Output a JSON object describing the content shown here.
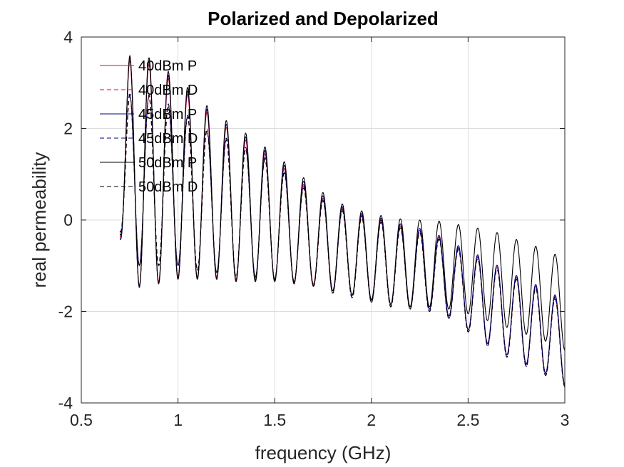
{
  "chart_data": {
    "type": "line",
    "title": "Polarized and Depolarized",
    "xlabel": "frequency (GHz)",
    "ylabel": "real permeability",
    "xlim": [
      0.5,
      3
    ],
    "ylim": [
      -4,
      4
    ],
    "xticks": [
      0.5,
      1,
      1.5,
      2,
      2.5,
      3
    ],
    "xtick_labels": [
      "0.5",
      "1",
      "1.5",
      "2",
      "2.5",
      "3"
    ],
    "yticks": [
      -4,
      -2,
      0,
      2,
      4
    ],
    "ytick_labels": [
      "-4",
      "-2",
      "0",
      "2",
      "4"
    ],
    "grid": true,
    "legend": "top-left",
    "oscillation_period_ghz": 0.1,
    "series": [
      {
        "name": "40dBm P",
        "color": "#ff0000",
        "dash": "solid",
        "x": [
          0.7,
          0.75,
          0.8,
          0.85,
          0.9,
          0.95,
          1.0,
          1.05,
          1.1,
          1.15,
          1.2,
          1.3,
          1.4,
          1.5,
          1.6,
          1.7,
          1.8,
          1.9,
          2.0,
          2.1,
          2.2,
          2.3,
          2.4,
          2.5,
          2.6,
          2.7,
          2.8,
          2.9,
          3.0
        ],
        "center": [
          1.05,
          1.1,
          1.05,
          1.0,
          0.95,
          0.9,
          0.85,
          0.75,
          0.65,
          0.55,
          0.45,
          0.3,
          0.15,
          0.0,
          -0.2,
          -0.4,
          -0.6,
          -0.75,
          -0.85,
          -0.95,
          -1.05,
          -1.1,
          -1.3,
          -1.55,
          -1.8,
          -2.05,
          -2.25,
          -2.45,
          -2.7
        ],
        "amplitude": [
          1.4,
          2.4,
          2.5,
          2.4,
          2.3,
          2.2,
          2.1,
          2.0,
          1.9,
          1.8,
          1.7,
          1.6,
          1.45,
          1.3,
          1.15,
          1.0,
          0.95,
          0.9,
          0.9,
          0.9,
          0.85,
          0.85,
          0.8,
          0.85,
          0.9,
          0.9,
          0.9,
          0.9,
          0.9
        ]
      },
      {
        "name": "40dBm D",
        "color": "#ff0000",
        "dash": "dashed",
        "x": [
          0.7,
          0.75,
          0.8,
          0.85,
          0.9,
          0.95,
          1.0,
          1.05,
          1.1,
          1.15,
          1.2,
          1.3,
          1.4,
          1.5,
          1.6,
          1.7,
          1.8,
          1.9,
          2.0,
          2.1,
          2.2,
          2.3,
          2.4,
          2.5,
          2.6,
          2.7,
          2.8,
          2.9,
          3.0
        ],
        "center": [
          0.85,
          0.95,
          0.9,
          0.85,
          0.8,
          0.75,
          0.7,
          0.6,
          0.5,
          0.4,
          0.35,
          0.2,
          0.1,
          -0.05,
          -0.25,
          -0.45,
          -0.65,
          -0.8,
          -0.9,
          -1.0,
          -1.1,
          -1.15,
          -1.35,
          -1.6,
          -1.85,
          -2.1,
          -2.3,
          -2.5,
          -2.75
        ],
        "amplitude": [
          1.1,
          1.8,
          1.9,
          1.85,
          1.8,
          1.75,
          1.7,
          1.65,
          1.6,
          1.55,
          1.5,
          1.45,
          1.35,
          1.25,
          1.1,
          1.0,
          0.95,
          0.9,
          0.9,
          0.9,
          0.85,
          0.85,
          0.8,
          0.85,
          0.9,
          0.9,
          0.9,
          0.9,
          0.9
        ]
      },
      {
        "name": "45dBm P",
        "color": "#000080",
        "dash": "solid",
        "x": [
          0.7,
          0.75,
          0.8,
          0.85,
          0.9,
          0.95,
          1.0,
          1.05,
          1.1,
          1.15,
          1.2,
          1.3,
          1.4,
          1.5,
          1.6,
          1.7,
          1.8,
          1.9,
          2.0,
          2.1,
          2.2,
          2.3,
          2.4,
          2.5,
          2.6,
          2.7,
          2.8,
          2.9,
          3.0
        ],
        "center": [
          1.05,
          1.12,
          1.07,
          1.02,
          0.97,
          0.92,
          0.87,
          0.77,
          0.67,
          0.57,
          0.47,
          0.32,
          0.17,
          0.02,
          -0.18,
          -0.38,
          -0.58,
          -0.73,
          -0.83,
          -0.93,
          -1.03,
          -1.08,
          -1.28,
          -1.53,
          -1.78,
          -2.03,
          -2.23,
          -2.43,
          -2.68
        ],
        "amplitude": [
          1.45,
          2.45,
          2.55,
          2.45,
          2.35,
          2.25,
          2.15,
          2.05,
          1.95,
          1.85,
          1.75,
          1.65,
          1.5,
          1.35,
          1.2,
          1.05,
          0.97,
          0.92,
          0.92,
          0.92,
          0.87,
          0.87,
          0.82,
          0.87,
          0.92,
          0.92,
          0.92,
          0.92,
          0.92
        ]
      },
      {
        "name": "45dBm D",
        "color": "#000080",
        "dash": "dashed",
        "x": [
          0.7,
          0.75,
          0.8,
          0.85,
          0.9,
          0.95,
          1.0,
          1.05,
          1.1,
          1.15,
          1.2,
          1.3,
          1.4,
          1.5,
          1.6,
          1.7,
          1.8,
          1.9,
          2.0,
          2.1,
          2.2,
          2.3,
          2.4,
          2.5,
          2.6,
          2.7,
          2.8,
          2.9,
          3.0
        ],
        "center": [
          0.87,
          0.97,
          0.92,
          0.87,
          0.82,
          0.77,
          0.72,
          0.62,
          0.52,
          0.42,
          0.37,
          0.22,
          0.12,
          -0.03,
          -0.23,
          -0.43,
          -0.63,
          -0.78,
          -0.88,
          -0.98,
          -1.08,
          -1.13,
          -1.33,
          -1.58,
          -1.83,
          -2.08,
          -2.28,
          -2.48,
          -2.73
        ],
        "amplitude": [
          1.12,
          1.82,
          1.92,
          1.87,
          1.82,
          1.77,
          1.72,
          1.67,
          1.62,
          1.57,
          1.52,
          1.47,
          1.37,
          1.27,
          1.12,
          1.02,
          0.97,
          0.92,
          0.92,
          0.92,
          0.87,
          0.87,
          0.82,
          0.87,
          0.92,
          0.92,
          0.92,
          0.92,
          0.92
        ]
      },
      {
        "name": "50dBm P",
        "color": "#000000",
        "dash": "solid",
        "x": [
          0.7,
          0.75,
          0.8,
          0.85,
          0.9,
          0.95,
          1.0,
          1.05,
          1.1,
          1.15,
          1.2,
          1.3,
          1.4,
          1.5,
          1.6,
          1.7,
          1.8,
          1.9,
          2.0,
          2.1,
          2.2,
          2.3,
          2.4,
          2.5,
          2.6,
          2.7,
          2.8,
          2.9,
          3.0
        ],
        "center": [
          1.1,
          1.15,
          1.1,
          1.05,
          1.0,
          0.95,
          0.9,
          0.8,
          0.7,
          0.6,
          0.5,
          0.35,
          0.2,
          0.05,
          -0.15,
          -0.35,
          -0.55,
          -0.7,
          -0.8,
          -0.9,
          -0.95,
          -0.95,
          -1.0,
          -1.1,
          -1.2,
          -1.35,
          -1.5,
          -1.65,
          -1.85
        ],
        "amplitude": [
          1.4,
          2.45,
          2.55,
          2.5,
          2.4,
          2.3,
          2.2,
          2.1,
          2.0,
          1.9,
          1.8,
          1.7,
          1.55,
          1.4,
          1.25,
          1.1,
          1.0,
          0.95,
          0.95,
          0.95,
          0.95,
          0.95,
          0.95,
          0.95,
          1.0,
          1.0,
          1.0,
          1.0,
          1.0
        ]
      },
      {
        "name": "50dBm D",
        "color": "#000000",
        "dash": "dashed",
        "x": [
          0.7,
          0.75,
          0.8,
          0.85,
          0.9,
          0.95,
          1.0,
          1.05,
          1.1,
          1.15,
          1.2,
          1.3,
          1.4,
          1.5,
          1.6,
          1.7,
          1.8,
          1.9,
          2.0,
          2.1,
          2.2,
          2.3,
          2.4,
          2.5,
          2.6,
          2.7,
          2.8,
          2.9,
          3.0
        ],
        "center": [
          0.85,
          0.95,
          0.9,
          0.85,
          0.8,
          0.75,
          0.7,
          0.6,
          0.5,
          0.4,
          0.35,
          0.2,
          0.1,
          -0.05,
          -0.25,
          -0.45,
          -0.65,
          -0.8,
          -0.9,
          -1.0,
          -1.1,
          -1.15,
          -1.35,
          -1.6,
          -1.85,
          -2.1,
          -2.3,
          -2.5,
          -2.75
        ],
        "amplitude": [
          1.1,
          1.8,
          1.9,
          1.85,
          1.8,
          1.75,
          1.7,
          1.65,
          1.6,
          1.55,
          1.5,
          1.45,
          1.35,
          1.25,
          1.1,
          1.0,
          0.95,
          0.9,
          0.9,
          0.9,
          0.85,
          0.85,
          0.8,
          0.85,
          0.9,
          0.9,
          0.9,
          0.9,
          0.9
        ]
      }
    ]
  }
}
